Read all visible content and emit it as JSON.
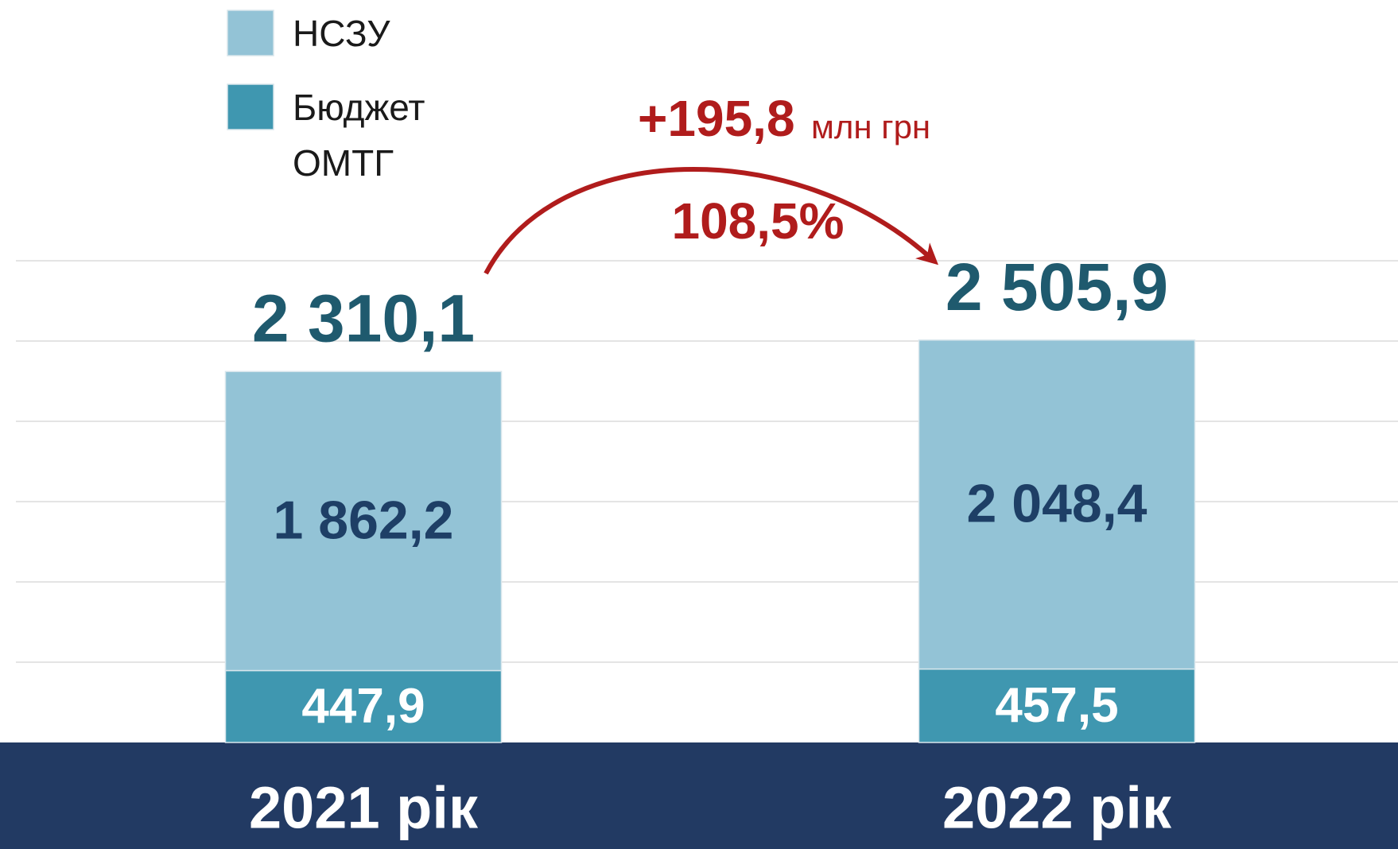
{
  "chart_data": {
    "type": "stacked_bar",
    "categories": [
      "2021 рік",
      "2022 рік"
    ],
    "series": [
      {
        "name": "Бюджет ОМТГ",
        "color": "#3f97b0",
        "values": [
          447.9,
          457.5
        ],
        "value_labels": [
          "447,9",
          "457,5"
        ]
      },
      {
        "name": "НСЗУ",
        "color": "#93c3d6",
        "values": [
          1862.2,
          2048.4
        ],
        "value_labels": [
          "1 862,2",
          "2 048,4"
        ]
      }
    ],
    "totals": [
      2310.1,
      2505.9
    ],
    "total_labels": [
      "2 310,1",
      "2 505,9"
    ],
    "annotations": {
      "change": "+195,8",
      "unit": "млн грн",
      "percent": "108,5%"
    },
    "ylim": [
      0,
      3000
    ],
    "yticks": [
      500,
      1000,
      1500,
      2000,
      2500,
      3000
    ],
    "grid": true
  }
}
